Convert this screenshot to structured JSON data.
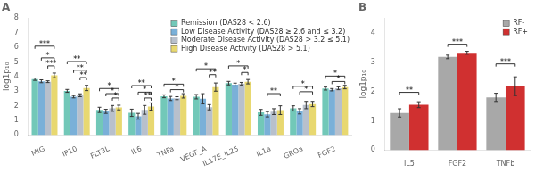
{
  "chart_data": [
    {
      "type": "bar",
      "title": "A",
      "ylabel": "log1p₁₀",
      "categories": [
        "MIG",
        "IP10",
        "FLT3L",
        "IL6",
        "TNFa",
        "VEGF_A",
        "IL17E_IL25",
        "IL1a",
        "GROa",
        "FGF2"
      ],
      "series": [
        {
          "name": "Remission (DAS28 < 2.6)",
          "color": "#72c8b8",
          "values": [
            3.82,
            3.02,
            1.72,
            1.52,
            2.65,
            2.62,
            3.55,
            1.55,
            1.82,
            3.18
          ],
          "errors": [
            0.08,
            0.1,
            0.18,
            0.25,
            0.1,
            0.15,
            0.12,
            0.2,
            0.18,
            0.1
          ]
        },
        {
          "name": "Low Disease Activity (DAS28 ≥ 2.6 and ≤ 3.2)",
          "color": "#7ab0d8",
          "values": [
            3.68,
            2.62,
            1.62,
            1.28,
            2.5,
            2.48,
            3.45,
            1.42,
            1.62,
            3.1
          ],
          "errors": [
            0.1,
            0.08,
            0.14,
            0.2,
            0.14,
            0.35,
            0.1,
            0.18,
            0.18,
            0.08
          ]
        },
        {
          "name": "Moderate Disease Activity (DAS28 > 3.2 ≤ 5.1)",
          "color": "#b8c0cc",
          "values": [
            3.65,
            2.72,
            1.82,
            1.72,
            2.52,
            1.9,
            3.5,
            1.6,
            2.05,
            3.2
          ],
          "errors": [
            0.06,
            0.1,
            0.2,
            0.3,
            0.1,
            0.18,
            0.1,
            0.2,
            0.25,
            0.1
          ]
        },
        {
          "name": "High Disease Activity (DAS28 > 5.1)",
          "color": "#e8d870",
          "values": [
            4.08,
            3.22,
            1.88,
            1.95,
            2.68,
            3.28,
            3.65,
            1.7,
            2.12,
            3.28
          ],
          "errors": [
            0.16,
            0.18,
            0.16,
            0.25,
            0.15,
            0.28,
            0.15,
            0.3,
            0.18,
            0.12
          ]
        }
      ],
      "ylim": [
        0,
        8
      ],
      "yticks": [
        0,
        1,
        2,
        3,
        4,
        5,
        6,
        7,
        8
      ],
      "grid": false,
      "legend": "upper right",
      "annotations": [
        {
          "text": "***",
          "category": "MIG",
          "from": "Remission (DAS28 < 2.6)",
          "to": "High Disease Activity (DAS28 > 5.1)",
          "y": 5.9
        },
        {
          "text": "*",
          "category": "MIG",
          "from": "Low Disease Activity (DAS28 ≥ 2.6 and ≤ 3.2)",
          "to": "High Disease Activity (DAS28 > 5.1)",
          "y": 5.1
        },
        {
          "text": "***",
          "category": "MIG",
          "from": "Moderate Disease Activity (DAS28 > 3.2 ≤ 5.1)",
          "to": "High Disease Activity (DAS28 > 5.1)",
          "y": 4.55
        },
        {
          "text": "**",
          "category": "IP10",
          "from": "Remission (DAS28 < 2.6)",
          "to": "High Disease Activity (DAS28 > 5.1)",
          "y": 4.85
        },
        {
          "text": "**",
          "category": "IP10",
          "from": "Low Disease Activity (DAS28 ≥ 2.6 and ≤ 3.2)",
          "to": "High Disease Activity (DAS28 > 5.1)",
          "y": 4.25
        },
        {
          "text": "**",
          "category": "IP10",
          "from": "Moderate Disease Activity (DAS28 > 3.2 ≤ 5.1)",
          "to": "High Disease Activity (DAS28 > 5.1)",
          "y": 3.75
        },
        {
          "text": "*",
          "category": "FLT3L",
          "from": "Remission (DAS28 < 2.6)",
          "to": "High Disease Activity (DAS28 > 5.1)",
          "y": 3.0
        },
        {
          "text": "*",
          "category": "FLT3L",
          "from": "Low Disease Activity (DAS28 ≥ 2.6 and ≤ 3.2)",
          "to": "High Disease Activity (DAS28 > 5.1)",
          "y": 2.65
        },
        {
          "text": "*",
          "category": "FLT3L",
          "from": "Moderate Disease Activity (DAS28 > 3.2 ≤ 5.1)",
          "to": "High Disease Activity (DAS28 > 5.1)",
          "y": 2.35
        },
        {
          "text": "**",
          "category": "IL6",
          "from": "Remission (DAS28 < 2.6)",
          "to": "High Disease Activity (DAS28 > 5.1)",
          "y": 3.2
        },
        {
          "text": "*",
          "category": "IL6",
          "from": "Low Disease Activity (DAS28 ≥ 2.6 and ≤ 3.2)",
          "to": "High Disease Activity (DAS28 > 5.1)",
          "y": 2.75
        },
        {
          "text": "**",
          "category": "IL6",
          "from": "Moderate Disease Activity (DAS28 > 3.2 ≤ 5.1)",
          "to": "High Disease Activity (DAS28 > 5.1)",
          "y": 2.35
        },
        {
          "text": "*",
          "category": "TNFa",
          "from": "Remission (DAS28 < 2.6)",
          "to": "High Disease Activity (DAS28 > 5.1)",
          "y": 3.3
        },
        {
          "text": "*",
          "category": "TNFa",
          "from": "Low Disease Activity (DAS28 ≥ 2.6 and ≤ 3.2)",
          "to": "High Disease Activity (DAS28 > 5.1)",
          "y": 2.92
        },
        {
          "text": "*",
          "category": "VEGF_A",
          "from": "Remission (DAS28 < 2.6)",
          "to": "High Disease Activity (DAS28 > 5.1)",
          "y": 4.35
        },
        {
          "text": "**",
          "category": "VEGF_A",
          "from": "Moderate Disease Activity (DAS28 > 3.2 ≤ 5.1)",
          "to": "High Disease Activity (DAS28 > 5.1)",
          "y": 3.95
        },
        {
          "text": "*",
          "category": "IL17E_IL25",
          "from": "Remission (DAS28 < 2.6)",
          "to": "High Disease Activity (DAS28 > 5.1)",
          "y": 4.55
        },
        {
          "text": "*",
          "category": "IL17E_IL25",
          "from": "Moderate Disease Activity (DAS28 > 3.2 ≤ 5.1)",
          "to": "High Disease Activity (DAS28 > 5.1)",
          "y": 4.1
        },
        {
          "text": "**",
          "category": "IL1a",
          "from": "Low Disease Activity (DAS28 ≥ 2.6 and ≤ 3.2)",
          "to": "High Disease Activity (DAS28 > 5.1)",
          "y": 2.65
        },
        {
          "text": "*",
          "category": "GROa",
          "from": "Remission (DAS28 < 2.6)",
          "to": "High Disease Activity (DAS28 > 5.1)",
          "y": 3.15
        },
        {
          "text": "*",
          "category": "GROa",
          "from": "Low Disease Activity (DAS28 ≥ 2.6 and ≤ 3.2)",
          "to": "High Disease Activity (DAS28 > 5.1)",
          "y": 2.78
        },
        {
          "text": "*",
          "category": "FGF2",
          "from": "Remission (DAS28 < 2.6)",
          "to": "High Disease Activity (DAS28 > 5.1)",
          "y": 3.85
        },
        {
          "text": "*",
          "category": "FGF2",
          "from": "Low Disease Activity (DAS28 ≥ 2.6 and ≤ 3.2)",
          "to": "High Disease Activity (DAS28 > 5.1)",
          "y": 3.48
        }
      ]
    },
    {
      "type": "bar",
      "title": "B",
      "ylabel": "log1p₁₀",
      "categories": [
        "IL5",
        "FGF2",
        "TNFb"
      ],
      "series": [
        {
          "name": "RF-",
          "color": "#a8a8a8",
          "values": [
            1.27,
            3.18,
            1.8
          ],
          "errors": [
            0.14,
            0.06,
            0.14
          ]
        },
        {
          "name": "RF+",
          "color": "#d03030",
          "values": [
            1.55,
            3.32,
            2.18
          ],
          "errors": [
            0.1,
            0.05,
            0.32
          ]
        }
      ],
      "ylim": [
        0,
        4.5
      ],
      "yticks": [
        0,
        1,
        2,
        3,
        4
      ],
      "grid": false,
      "legend": "upper right",
      "annotations": [
        {
          "text": "**",
          "category": "IL5",
          "from": "RF-",
          "to": "RF+",
          "y": 1.88
        },
        {
          "text": "***",
          "category": "FGF2",
          "from": "RF-",
          "to": "RF+",
          "y": 3.52
        },
        {
          "text": "***",
          "category": "TNFb",
          "from": "RF-",
          "to": "RF+",
          "y": 2.85
        }
      ]
    }
  ]
}
